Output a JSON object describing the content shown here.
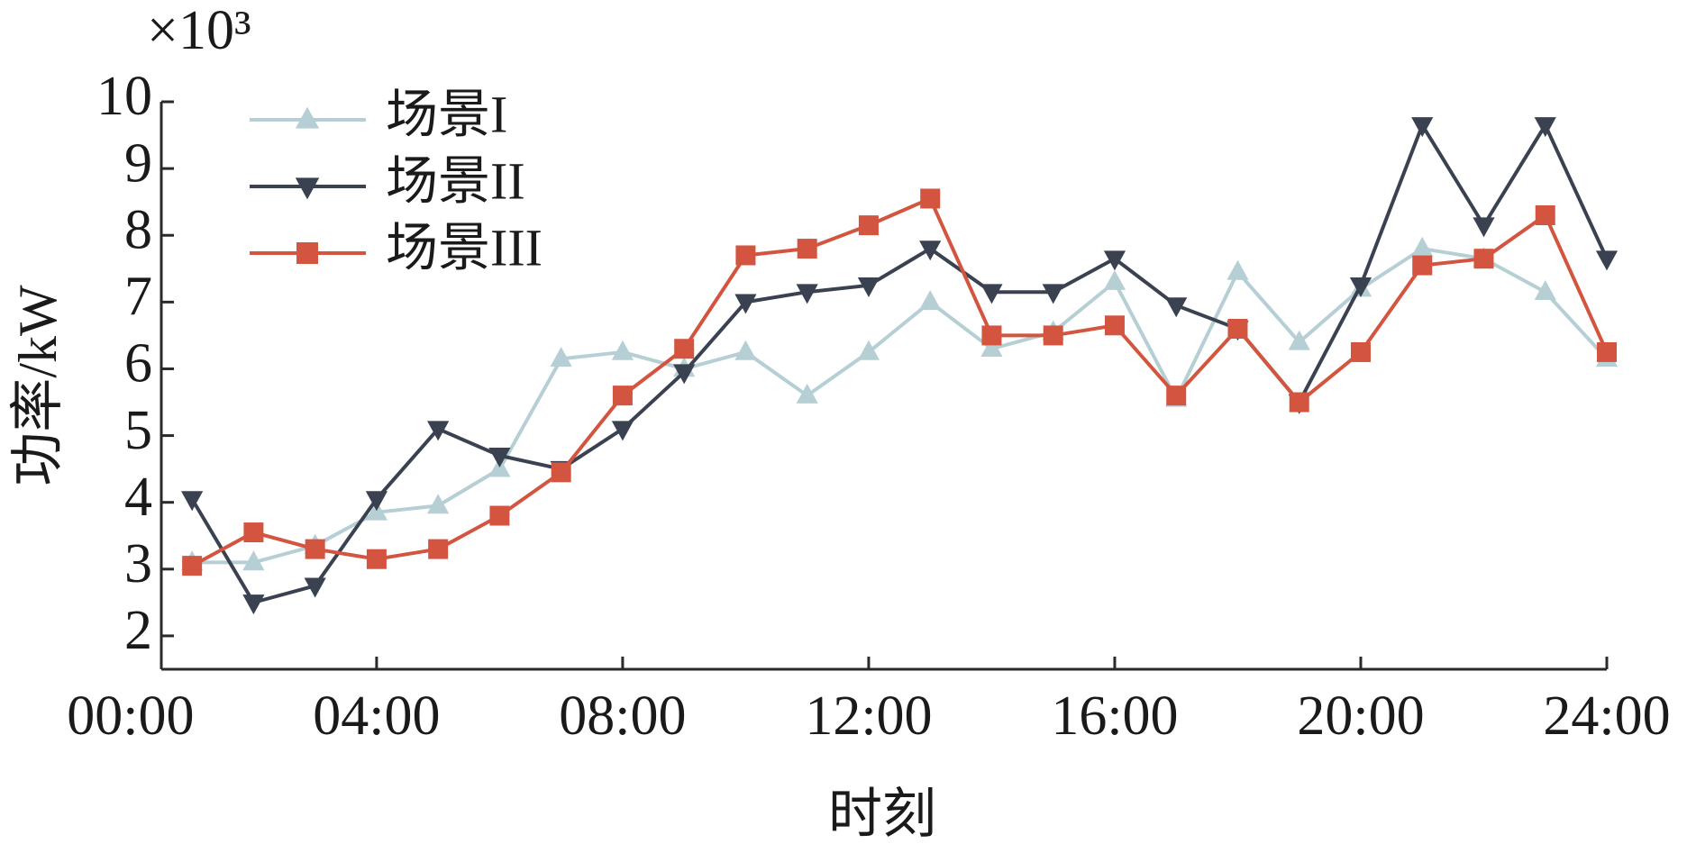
{
  "chart_data": {
    "type": "line",
    "multiplier_label": "×10³",
    "xlabel": "时刻",
    "ylabel": "功率/kW",
    "x": [
      1,
      2,
      3,
      4,
      5,
      6,
      7,
      8,
      9,
      10,
      11,
      12,
      13,
      14,
      15,
      16,
      17,
      18,
      19,
      20,
      21,
      22,
      23,
      24
    ],
    "xlim": [
      0.5,
      24
    ],
    "xticks": [
      {
        "value": 0,
        "label": "00:00"
      },
      {
        "value": 4,
        "label": "04:00"
      },
      {
        "value": 8,
        "label": "08:00"
      },
      {
        "value": 12,
        "label": "12:00"
      },
      {
        "value": 16,
        "label": "16:00"
      },
      {
        "value": 20,
        "label": "20:00"
      },
      {
        "value": 24,
        "label": "24:00"
      }
    ],
    "ylim": [
      1.5,
      10
    ],
    "yticks": [
      2,
      3,
      4,
      5,
      6,
      7,
      8,
      9,
      10
    ],
    "legend": "upper left",
    "series": [
      {
        "name": "场景I",
        "color": "#b5cfd5",
        "marker": "triangle-up",
        "values": [
          3.1,
          3.1,
          3.35,
          3.85,
          3.95,
          4.5,
          6.15,
          6.25,
          6.0,
          6.25,
          5.6,
          6.25,
          7.0,
          6.3,
          6.55,
          7.3,
          5.55,
          7.45,
          6.4,
          7.2,
          7.8,
          7.65,
          7.15,
          6.15
        ]
      },
      {
        "name": "场景II",
        "color": "#3a4150",
        "marker": "triangle-down",
        "values": [
          4.05,
          2.5,
          2.75,
          4.05,
          5.1,
          4.7,
          4.5,
          5.1,
          5.95,
          7.0,
          7.15,
          7.25,
          7.8,
          7.15,
          7.15,
          7.65,
          6.95,
          6.6,
          5.5,
          7.25,
          9.65,
          8.15,
          9.65,
          7.65
        ]
      },
      {
        "name": "场景III",
        "color": "#d4553f",
        "marker": "square",
        "values": [
          3.05,
          3.55,
          3.3,
          3.15,
          3.3,
          3.8,
          4.45,
          5.6,
          6.3,
          7.7,
          7.8,
          8.15,
          8.55,
          6.5,
          6.5,
          6.65,
          5.6,
          6.6,
          5.5,
          6.25,
          7.55,
          7.65,
          8.3,
          6.25
        ]
      }
    ]
  }
}
